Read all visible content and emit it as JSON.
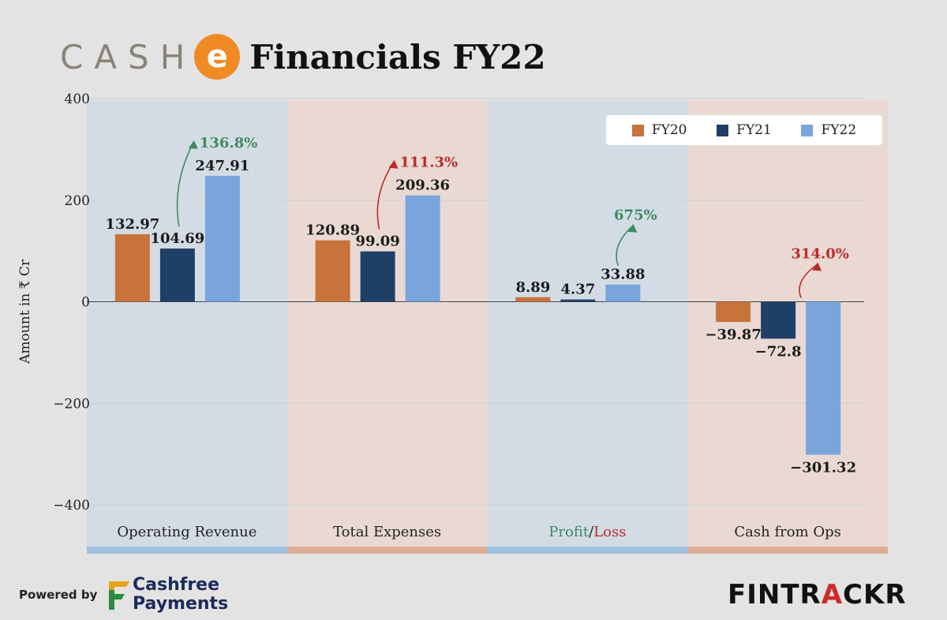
{
  "header": {
    "brand_text": "CASH",
    "brand_letter": "e",
    "title": "Financials FY22"
  },
  "colors": {
    "FY20": "#c8733b",
    "FY21": "#1f3f66",
    "FY22": "#7aa5dc",
    "growth_green": "#3e8a5e",
    "growth_red": "#b92c2c",
    "panel_blue": "#cdd9e6",
    "panel_orange": "#ebd6cc",
    "band_blue": "#9fbfdf",
    "band_orange": "#ddae97"
  },
  "chart_data": {
    "type": "bar",
    "title": "Financials FY22",
    "ylabel": "Amount in ₹ Cr",
    "xlabel": "",
    "ylim": [
      -400,
      400
    ],
    "yticks": [
      400,
      200,
      0,
      -200,
      -400
    ],
    "ytick_labels": [
      "400",
      "200",
      "0",
      "−200",
      "−400"
    ],
    "grid": true,
    "legend_position": "top-right",
    "categories": [
      "Operating Revenue",
      "Total Expenses",
      "Profit/Loss",
      "Cash from Ops"
    ],
    "series": [
      {
        "name": "FY20",
        "values": [
          132.97,
          120.89,
          8.89,
          -39.87
        ],
        "labels": [
          "132.97",
          "120.89",
          "8.89",
          "−39.87"
        ]
      },
      {
        "name": "FY21",
        "values": [
          104.69,
          99.09,
          4.37,
          -72.8
        ],
        "labels": [
          "104.69",
          "99.09",
          "4.37",
          "−72.8"
        ]
      },
      {
        "name": "FY22",
        "values": [
          247.91,
          209.36,
          33.88,
          -301.32
        ],
        "labels": [
          "247.91",
          "209.36",
          "33.88",
          "−301.32"
        ]
      }
    ],
    "growth_annotations": [
      {
        "category": "Operating Revenue",
        "text": "136.8%",
        "color": "green"
      },
      {
        "category": "Total Expenses",
        "text": "111.3%",
        "color": "red"
      },
      {
        "category": "Profit/Loss",
        "text": "675%",
        "color": "green"
      },
      {
        "category": "Cash from Ops",
        "text": "314.0%",
        "color": "red"
      }
    ],
    "category_label_parts": {
      "profit_word": "Profit",
      "separator": "/",
      "loss_word": "Loss"
    }
  },
  "footer": {
    "powered_by": "Powered by",
    "partner_line1": "Cashfree",
    "partner_line2": "Payments",
    "brand_prefix": "FINTR",
    "brand_accent": "A",
    "brand_suffix": "CKR"
  }
}
